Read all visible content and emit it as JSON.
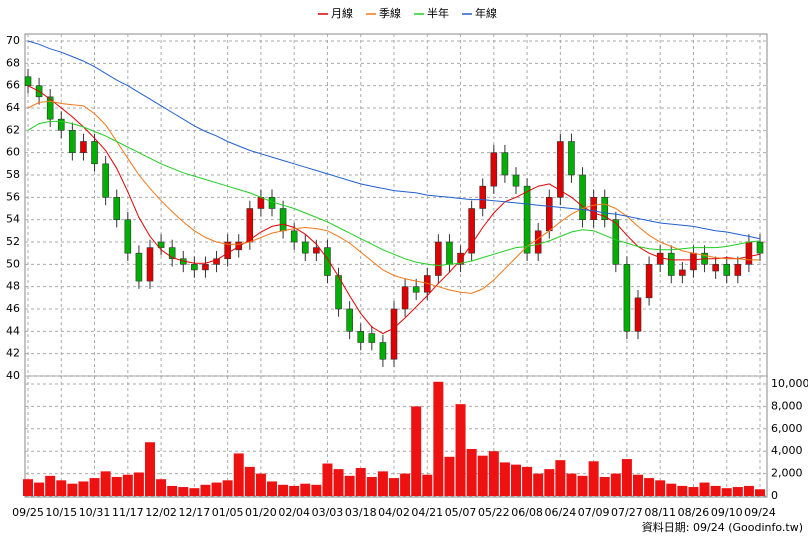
{
  "chart_data": {
    "type": "candlestick",
    "legend": "top",
    "up_color": "#e00000",
    "down_color": "#00b000",
    "categories": [
      "09/25",
      null,
      null,
      "10/15",
      null,
      null,
      "10/31",
      null,
      null,
      "11/17",
      null,
      null,
      "12/02",
      null,
      null,
      "12/17",
      null,
      null,
      "01/05",
      null,
      null,
      "01/20",
      null,
      null,
      "02/04",
      null,
      null,
      "03/03",
      null,
      null,
      "03/18",
      null,
      null,
      "04/02",
      null,
      null,
      "04/21",
      null,
      null,
      "05/07",
      null,
      null,
      "05/22",
      null,
      null,
      "06/08",
      null,
      null,
      "06/24",
      null,
      null,
      "07/09",
      null,
      null,
      "07/27",
      null,
      null,
      "08/11",
      null,
      null,
      "08/26",
      null,
      null,
      "09/10",
      null,
      null,
      "09/24"
    ],
    "open": [
      66.8,
      66,
      65,
      63,
      62,
      60,
      61,
      59,
      56,
      54,
      51,
      48.5,
      52,
      51.5,
      50.5,
      50,
      49.5,
      50,
      50.5,
      51.3,
      52,
      55,
      56,
      55,
      53,
      52,
      51,
      51.5,
      49,
      46,
      44,
      43.8,
      43,
      41.5,
      46,
      48,
      47.5,
      49,
      52,
      50,
      51,
      55,
      57,
      60,
      58,
      57,
      51,
      53,
      56,
      61,
      58,
      54,
      56,
      54,
      50,
      44,
      47,
      50,
      51,
      49,
      49.5,
      51,
      49.4,
      50,
      49,
      50,
      52
    ],
    "high": [
      67.5,
      66.7,
      65.7,
      63.7,
      62.7,
      61.7,
      61.7,
      59.7,
      56.7,
      54.7,
      51.7,
      52.2,
      52.7,
      52.2,
      51.2,
      50.7,
      50.7,
      51.2,
      52.7,
      52.7,
      55.7,
      56.7,
      56.7,
      55.7,
      53.7,
      52.7,
      52.2,
      52.2,
      49.7,
      46.7,
      44.7,
      44.5,
      43.7,
      46.7,
      48.7,
      48.7,
      49.7,
      52.7,
      52.7,
      51.7,
      55.7,
      57.7,
      60.7,
      60.7,
      58.7,
      57.7,
      53.7,
      56.7,
      61.7,
      61.7,
      58.7,
      56.7,
      56.7,
      54.7,
      50.7,
      47.7,
      50.7,
      51.7,
      51.7,
      50.2,
      51.7,
      51.7,
      50.7,
      50.7,
      50.7,
      52.7,
      52.7
    ],
    "low": [
      65.3,
      64.3,
      62.3,
      61.3,
      59.3,
      59.3,
      58.3,
      55.3,
      53.3,
      50.3,
      47.8,
      47.8,
      50.8,
      49.8,
      49.3,
      48.8,
      48.8,
      49.3,
      49.8,
      50.6,
      51.3,
      54.3,
      54.3,
      52.3,
      51.3,
      50.3,
      50.3,
      48.3,
      45.3,
      43.3,
      42.3,
      42.3,
      40.8,
      40.8,
      45.3,
      46.8,
      46.8,
      48.3,
      49.3,
      49.3,
      50.3,
      54.3,
      56.3,
      57.3,
      56.3,
      50.3,
      50.3,
      52.3,
      55.3,
      57.3,
      53.3,
      53.3,
      53.3,
      49.3,
      43.3,
      43.3,
      46.3,
      49.3,
      48.3,
      48.3,
      48.8,
      49.3,
      48.7,
      48.3,
      48.3,
      49.3,
      50.3
    ],
    "close": [
      66,
      65,
      63,
      62,
      60,
      61,
      59,
      56,
      54,
      51,
      48.5,
      51.5,
      51.5,
      50.5,
      50,
      49.5,
      50,
      50.5,
      52,
      52,
      55,
      56,
      55,
      53,
      52,
      51,
      51.5,
      49,
      46,
      44,
      43,
      43,
      41.5,
      46,
      48,
      47.5,
      49,
      52,
      50,
      51,
      55,
      57,
      60,
      58,
      57,
      51,
      53,
      56,
      61,
      58,
      54,
      56,
      54,
      50,
      44,
      47,
      50,
      51,
      49,
      49.5,
      51,
      50,
      50,
      49,
      50,
      52,
      51
    ],
    "ylim": [
      40,
      70
    ],
    "yticks": [
      40,
      42,
      44,
      46,
      48,
      50,
      52,
      54,
      56,
      58,
      60,
      62,
      64,
      66,
      68,
      70
    ],
    "grid": true,
    "series": [
      {
        "name": "月線",
        "color": "#e00000",
        "values": [
          66,
          65.5,
          64.8,
          64,
          63.2,
          62.3,
          61.3,
          60.2,
          58.6,
          56.5,
          54.2,
          52.5,
          51.3,
          50.6,
          50.3,
          50.1,
          50.1,
          50.4,
          51,
          51.6,
          52.2,
          52.9,
          53.4,
          53.6,
          53.3,
          52.7,
          51.8,
          50.5,
          48.9,
          47.2,
          45.6,
          44.4,
          43.8,
          44.3,
          45.2,
          46.2,
          47.2,
          48.3,
          49.3,
          50.4,
          51.8,
          53.3,
          54.6,
          55.6,
          56,
          56.5,
          57,
          57.2,
          56.6,
          56,
          55.2,
          54.6,
          54.3,
          53.7,
          52.6,
          51.6,
          51,
          50.6,
          50.4,
          50.4,
          50.4,
          50.5,
          50.5,
          50.6,
          50.5,
          50.7,
          50.9
        ]
      },
      {
        "name": "季線",
        "color": "#f07818",
        "values": [
          64,
          64.5,
          64.6,
          64.4,
          64.3,
          64.2,
          63.5,
          62.5,
          61,
          59.5,
          58,
          56.8,
          55.7,
          54.7,
          53.8,
          53,
          52.4,
          52,
          51.8,
          51.8,
          52,
          52.4,
          52.8,
          53,
          53.2,
          53.3,
          53.2,
          53,
          52.5,
          51.9,
          51.1,
          50.3,
          49.5,
          49,
          48.7,
          48.5,
          48.3,
          48,
          47.7,
          47.5,
          47.4,
          47.8,
          48.6,
          49.6,
          50.6,
          51.6,
          52.3,
          53,
          53.8,
          54.5,
          55,
          55.3,
          55.4,
          55,
          54.3,
          53.4,
          52.6,
          52,
          51.6,
          51.2,
          51,
          50.8,
          50.6,
          50.5,
          50.5,
          50.4,
          50.4
        ]
      },
      {
        "name": "半年",
        "color": "#20d020",
        "values": [
          62,
          62.6,
          62.8,
          62.8,
          62.6,
          62.3,
          61.9,
          61.5,
          61,
          60.5,
          60,
          59.5,
          59,
          58.6,
          58.2,
          57.9,
          57.6,
          57.3,
          57,
          56.7,
          56.4,
          56,
          55.6,
          55.3,
          55,
          54.6,
          54.2,
          53.8,
          53.3,
          52.8,
          52.3,
          51.8,
          51.3,
          50.9,
          50.5,
          50.2,
          50,
          49.9,
          50,
          50.1,
          50.3,
          50.6,
          50.9,
          51.2,
          51.5,
          51.6,
          51.8,
          52.1,
          52.5,
          52.9,
          53.1,
          53,
          52.6,
          52.2,
          51.9,
          51.6,
          51.4,
          51.3,
          51.3,
          51.4,
          51.5,
          51.5,
          51.5,
          51.6,
          51.8,
          52,
          52.1
        ]
      },
      {
        "name": "年線",
        "color": "#2060d0",
        "values": [
          70,
          69.7,
          69.3,
          69,
          68.6,
          68.2,
          67.7,
          67.1,
          66.5,
          66,
          65.4,
          64.8,
          64.2,
          63.6,
          63,
          62.4,
          61.9,
          61.5,
          61,
          60.6,
          60.2,
          59.9,
          59.6,
          59.3,
          59,
          58.7,
          58.4,
          58.1,
          57.8,
          57.5,
          57.2,
          57,
          56.8,
          56.6,
          56.5,
          56.4,
          56.2,
          56.1,
          56,
          55.9,
          55.8,
          55.8,
          55.7,
          55.6,
          55.5,
          55.4,
          55.3,
          55.2,
          55.1,
          55,
          54.9,
          54.8,
          54.6,
          54.5,
          54.3,
          54.1,
          53.9,
          53.7,
          53.6,
          53.5,
          53.4,
          53.2,
          53,
          52.9,
          52.7,
          52.5,
          52.3
        ]
      }
    ],
    "volume": {
      "color": "#ee1111",
      "values": [
        1500,
        1200,
        1800,
        1400,
        1100,
        1300,
        1600,
        2200,
        1700,
        1900,
        2100,
        4800,
        1500,
        900,
        800,
        700,
        1000,
        1200,
        1400,
        3800,
        2600,
        2000,
        1300,
        1000,
        900,
        1100,
        1000,
        2900,
        2400,
        1800,
        2500,
        1700,
        2200,
        1600,
        2000,
        8000,
        1900,
        10200,
        3500,
        8200,
        4200,
        3600,
        4000,
        3000,
        2800,
        2600,
        2000,
        2400,
        3200,
        2000,
        1800,
        3100,
        1700,
        2000,
        3300,
        1900,
        1600,
        1400,
        1100,
        900,
        800,
        1200,
        900,
        700,
        800,
        900,
        600
      ],
      "ylim": [
        0,
        10500
      ],
      "yticks": [
        0,
        {
          "value": 2000,
          "label": "2,000"
        },
        {
          "value": 4000,
          "label": "4,000"
        },
        {
          "value": 6000,
          "label": "6,000"
        },
        {
          "value": 8000,
          "label": "8,000"
        },
        {
          "value": 10000,
          "label": "10,000"
        }
      ]
    },
    "source": "資料日期: 09/24 (Goodinfo.tw)"
  }
}
